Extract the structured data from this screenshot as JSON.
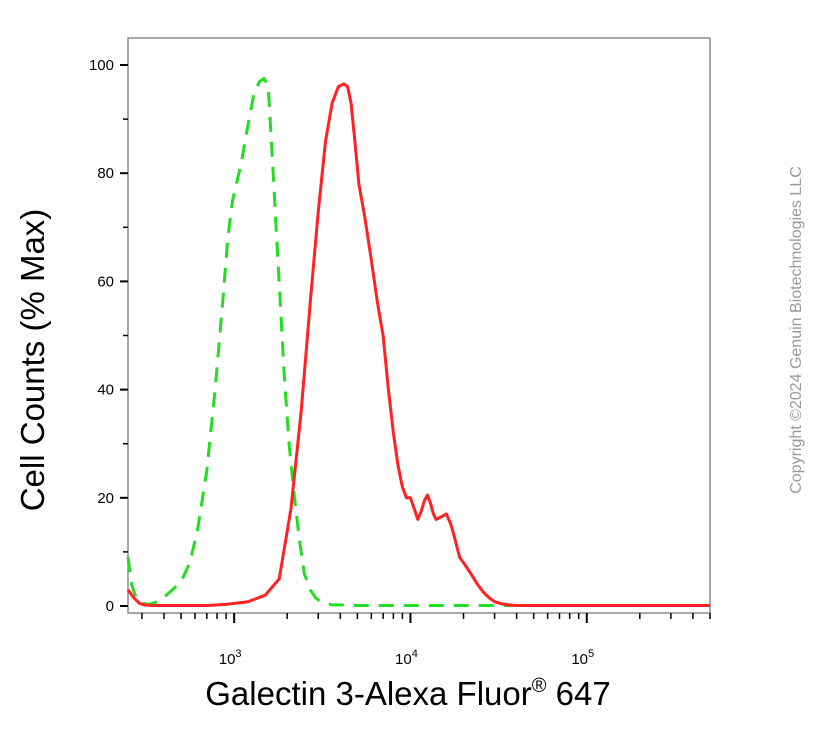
{
  "chart_data": {
    "type": "line",
    "title": "",
    "xlabel": "Galectin 3-Alexa Fluor",
    "xlabel_superscript": "®",
    "xlabel_suffix": " 647",
    "ylabel": "Cell Counts (% Max)",
    "x_scale": "log",
    "xlim": [
      250,
      500000
    ],
    "ylim": [
      0,
      100
    ],
    "y_ticks": [
      0,
      20,
      40,
      60,
      80,
      100
    ],
    "y_tick_labels": [
      "0",
      "20",
      "40",
      "60",
      "80",
      "100"
    ],
    "x_major_ticks": [
      1000,
      10000,
      100000
    ],
    "x_tick_labels": [
      {
        "base": "10",
        "exp": "3"
      },
      {
        "base": "10",
        "exp": "4"
      },
      {
        "base": "10",
        "exp": "5"
      }
    ],
    "grid": false,
    "series": [
      {
        "color": "#22dd22",
        "style": "dashed",
        "x": [
          250,
          262,
          278,
          300,
          330,
          380,
          430,
          500,
          560,
          620,
          700,
          780,
          860,
          920,
          980,
          1030,
          1100,
          1200,
          1300,
          1400,
          1480,
          1560,
          1640,
          1730,
          1820,
          1920,
          2050,
          2200,
          2350,
          2500,
          2700,
          2900,
          3100,
          3300,
          3600,
          4000,
          5000,
          7000,
          10000,
          20000,
          50000,
          100000,
          500000
        ],
        "y": [
          9,
          4,
          1.5,
          0.5,
          0.3,
          1,
          2.5,
          4.5,
          8,
          14,
          25,
          40,
          56,
          68,
          75,
          78,
          82,
          89,
          95,
          97,
          97.5,
          96,
          84,
          70,
          57,
          43,
          30,
          20,
          12,
          6,
          3,
          1.5,
          0.8,
          0.4,
          0.2,
          0.2,
          0.1,
          0.1,
          0.1,
          0.1,
          0.1,
          0.1,
          0.1
        ]
      },
      {
        "color": "#ff2222",
        "style": "solid",
        "x": [
          250,
          270,
          290,
          310,
          340,
          400,
          500,
          700,
          900,
          1200,
          1500,
          1800,
          2100,
          2400,
          2700,
          3000,
          3300,
          3600,
          3900,
          4200,
          4400,
          4600,
          4800,
          5100,
          5500,
          6000,
          6500,
          7000,
          7500,
          8000,
          8500,
          9000,
          9500,
          10000,
          10500,
          11000,
          11500,
          12000,
          12500,
          13000,
          13500,
          14000,
          15000,
          16000,
          17000,
          18000,
          19000,
          20000,
          22000,
          24000,
          26000,
          28000,
          30000,
          33000,
          36000,
          40000,
          45000,
          50000,
          60000,
          100000,
          200000,
          500000
        ],
        "y": [
          3,
          1.5,
          0.5,
          0.2,
          0.1,
          0.1,
          0.1,
          0.1,
          0.3,
          0.8,
          2,
          5,
          18,
          36,
          56,
          73,
          86,
          93,
          96,
          96.5,
          96,
          93,
          87,
          78,
          72,
          64,
          56,
          50,
          40,
          32,
          26,
          22,
          20,
          20,
          18,
          16,
          17.5,
          19.5,
          20.5,
          19,
          17,
          16,
          16.5,
          17,
          15,
          12,
          9,
          8,
          6,
          4,
          2.5,
          1.5,
          0.8,
          0.4,
          0.2,
          0.1,
          0.1,
          0.1,
          0.1,
          0.1,
          0.1,
          0.1
        ]
      }
    ]
  },
  "copyright_text": "Copyright ©2024 Genuin Biotechnologies LLC"
}
